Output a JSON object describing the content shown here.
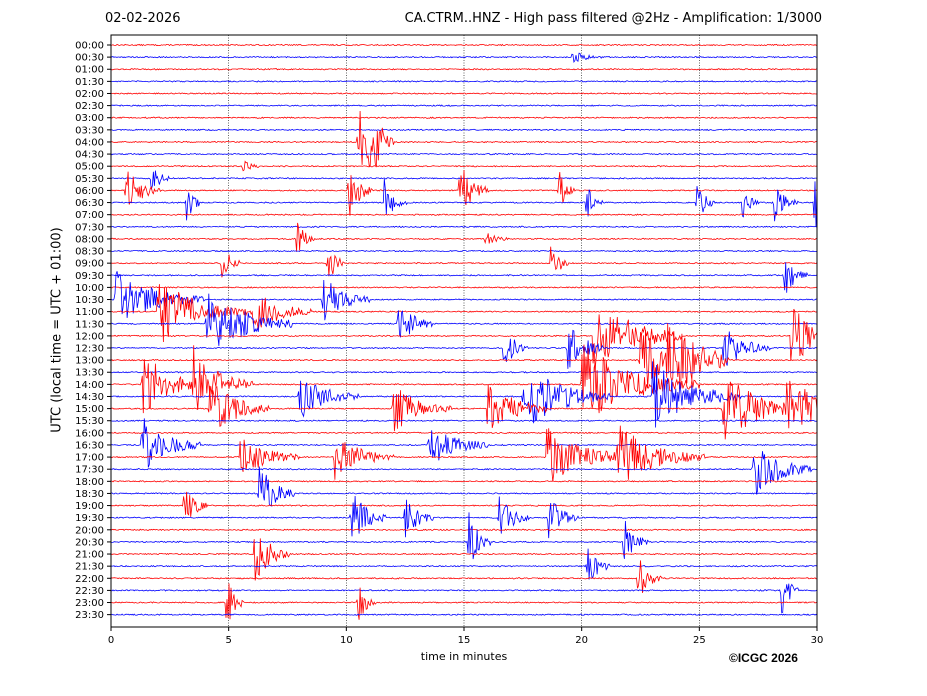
{
  "header": {
    "date": "02-02-2026",
    "title": "CA.CTRM..HNZ - High pass filtered @2Hz - Amplification: 1/3000"
  },
  "footer": {
    "copyright": "©ICGC 2026"
  },
  "chart_data": {
    "type": "line",
    "title": "CA.CTRM..HNZ - High pass filtered @2Hz - Amplification: 1/3000",
    "xlabel": "time in minutes",
    "ylabel": "UTC (local time = UTC + 01:00)",
    "xlim": [
      0,
      30
    ],
    "x_ticks": [
      0,
      5,
      10,
      15,
      20,
      25,
      30
    ],
    "y_ticks": [
      "00:00",
      "00:30",
      "01:00",
      "01:30",
      "02:00",
      "02:30",
      "03:00",
      "03:30",
      "04:00",
      "04:30",
      "05:00",
      "05:30",
      "06:00",
      "06:30",
      "07:00",
      "07:30",
      "08:00",
      "08:30",
      "09:00",
      "09:30",
      "10:00",
      "10:30",
      "11:00",
      "11:30",
      "12:00",
      "12:30",
      "13:00",
      "13:30",
      "14:00",
      "14:30",
      "15:00",
      "15:30",
      "16:00",
      "16:30",
      "17:00",
      "17:30",
      "18:00",
      "18:30",
      "19:00",
      "19:30",
      "20:00",
      "20:30",
      "21:00",
      "21:30",
      "22:00",
      "22:30",
      "23:00",
      "23:30"
    ],
    "grid": "vertical dotted at 5-minute marks",
    "colors": {
      "even_trace": "#ff0000",
      "odd_trace": "#0000ff"
    },
    "activity": [
      {
        "row": 1,
        "min": 19.6,
        "amp": 0.5,
        "dur": 0.5
      },
      {
        "row": 10,
        "min": 5.6,
        "amp": 0.5,
        "dur": 0.3
      },
      {
        "row": 8,
        "min": 10.5,
        "amp": 3.2,
        "dur": 0.5
      },
      {
        "row": 8,
        "min": 11.0,
        "amp": 3.0,
        "dur": 0.4
      },
      {
        "row": 11,
        "min": 1.7,
        "amp": 1.6,
        "dur": 0.3
      },
      {
        "row": 12,
        "min": 0.6,
        "amp": 2.0,
        "dur": 0.6
      },
      {
        "row": 13,
        "min": 3.2,
        "amp": 1.8,
        "dur": 0.3
      },
      {
        "row": 12,
        "min": 10.1,
        "amp": 2.5,
        "dur": 0.4
      },
      {
        "row": 13,
        "min": 11.6,
        "amp": 2.0,
        "dur": 0.4
      },
      {
        "row": 12,
        "min": 14.8,
        "amp": 2.5,
        "dur": 0.5
      },
      {
        "row": 12,
        "min": 19.0,
        "amp": 2.0,
        "dur": 0.3
      },
      {
        "row": 13,
        "min": 20.2,
        "amp": 1.5,
        "dur": 0.3
      },
      {
        "row": 13,
        "min": 24.9,
        "amp": 2.0,
        "dur": 0.3
      },
      {
        "row": 13,
        "min": 26.8,
        "amp": 1.5,
        "dur": 0.3
      },
      {
        "row": 13,
        "min": 28.2,
        "amp": 1.5,
        "dur": 0.4
      },
      {
        "row": 13,
        "min": 29.9,
        "amp": 3.0,
        "dur": 0.3
      },
      {
        "row": 16,
        "min": 7.9,
        "amp": 1.8,
        "dur": 0.3
      },
      {
        "row": 16,
        "min": 15.9,
        "amp": 0.6,
        "dur": 0.4
      },
      {
        "row": 18,
        "min": 4.7,
        "amp": 2.0,
        "dur": 0.3
      },
      {
        "row": 18,
        "min": 9.2,
        "amp": 2.0,
        "dur": 0.3
      },
      {
        "row": 18,
        "min": 18.7,
        "amp": 2.0,
        "dur": 0.3
      },
      {
        "row": 19,
        "min": 28.6,
        "amp": 2.0,
        "dur": 0.4
      },
      {
        "row": 21,
        "min": 0.2,
        "amp": 2.5,
        "dur": 1.5
      },
      {
        "row": 22,
        "min": 2.0,
        "amp": 3.0,
        "dur": 1.5
      },
      {
        "row": 23,
        "min": 4.0,
        "amp": 3.0,
        "dur": 1.5
      },
      {
        "row": 22,
        "min": 6.0,
        "amp": 2.0,
        "dur": 1.0
      },
      {
        "row": 21,
        "min": 9.0,
        "amp": 2.0,
        "dur": 0.8
      },
      {
        "row": 23,
        "min": 12.2,
        "amp": 2.0,
        "dur": 0.6
      },
      {
        "row": 25,
        "min": 16.7,
        "amp": 2.0,
        "dur": 0.4
      },
      {
        "row": 25,
        "min": 19.4,
        "amp": 2.5,
        "dur": 0.6
      },
      {
        "row": 24,
        "min": 20.5,
        "amp": 3.5,
        "dur": 1.5
      },
      {
        "row": 26,
        "min": 22.5,
        "amp": 3.0,
        "dur": 1.5
      },
      {
        "row": 26,
        "min": 23.6,
        "amp": 3.0,
        "dur": 1.0
      },
      {
        "row": 25,
        "min": 26.0,
        "amp": 2.0,
        "dur": 0.8
      },
      {
        "row": 24,
        "min": 28.9,
        "amp": 3.0,
        "dur": 0.8
      },
      {
        "row": 28,
        "min": 1.3,
        "amp": 3.0,
        "dur": 1.0
      },
      {
        "row": 28,
        "min": 3.5,
        "amp": 3.0,
        "dur": 1.0
      },
      {
        "row": 30,
        "min": 4.2,
        "amp": 2.5,
        "dur": 1.0
      },
      {
        "row": 29,
        "min": 8.0,
        "amp": 2.0,
        "dur": 1.0
      },
      {
        "row": 30,
        "min": 12.0,
        "amp": 2.0,
        "dur": 1.0
      },
      {
        "row": 30,
        "min": 16.0,
        "amp": 2.5,
        "dur": 1.0
      },
      {
        "row": 29,
        "min": 17.5,
        "amp": 3.0,
        "dur": 1.5
      },
      {
        "row": 28,
        "min": 20.0,
        "amp": 3.5,
        "dur": 2.0
      },
      {
        "row": 29,
        "min": 23.0,
        "amp": 3.0,
        "dur": 1.5
      },
      {
        "row": 30,
        "min": 26.0,
        "amp": 3.0,
        "dur": 1.5
      },
      {
        "row": 30,
        "min": 28.7,
        "amp": 2.5,
        "dur": 1.2
      },
      {
        "row": 33,
        "min": 1.3,
        "amp": 2.5,
        "dur": 1.0
      },
      {
        "row": 34,
        "min": 5.5,
        "amp": 2.0,
        "dur": 1.0
      },
      {
        "row": 34,
        "min": 9.5,
        "amp": 2.0,
        "dur": 1.0
      },
      {
        "row": 33,
        "min": 13.5,
        "amp": 2.0,
        "dur": 1.0
      },
      {
        "row": 34,
        "min": 18.5,
        "amp": 2.5,
        "dur": 1.5
      },
      {
        "row": 34,
        "min": 21.5,
        "amp": 2.5,
        "dur": 1.5
      },
      {
        "row": 35,
        "min": 27.3,
        "amp": 2.5,
        "dur": 1.0
      },
      {
        "row": 37,
        "min": 6.3,
        "amp": 2.5,
        "dur": 0.6
      },
      {
        "row": 38,
        "min": 3.1,
        "amp": 2.0,
        "dur": 0.4
      },
      {
        "row": 39,
        "min": 10.2,
        "amp": 2.5,
        "dur": 0.6
      },
      {
        "row": 39,
        "min": 12.5,
        "amp": 2.0,
        "dur": 0.5
      },
      {
        "row": 39,
        "min": 16.5,
        "amp": 2.0,
        "dur": 0.5
      },
      {
        "row": 39,
        "min": 18.6,
        "amp": 2.0,
        "dur": 0.5
      },
      {
        "row": 41,
        "min": 15.2,
        "amp": 2.5,
        "dur": 0.4
      },
      {
        "row": 41,
        "min": 21.8,
        "amp": 2.0,
        "dur": 0.4
      },
      {
        "row": 42,
        "min": 6.1,
        "amp": 2.5,
        "dur": 0.6
      },
      {
        "row": 43,
        "min": 20.2,
        "amp": 2.0,
        "dur": 0.4
      },
      {
        "row": 44,
        "min": 22.4,
        "amp": 2.0,
        "dur": 0.4
      },
      {
        "row": 46,
        "min": 4.9,
        "amp": 2.5,
        "dur": 0.3
      },
      {
        "row": 46,
        "min": 10.5,
        "amp": 2.0,
        "dur": 0.3
      },
      {
        "row": 45,
        "min": 28.5,
        "amp": 2.5,
        "dur": 0.3
      }
    ]
  }
}
